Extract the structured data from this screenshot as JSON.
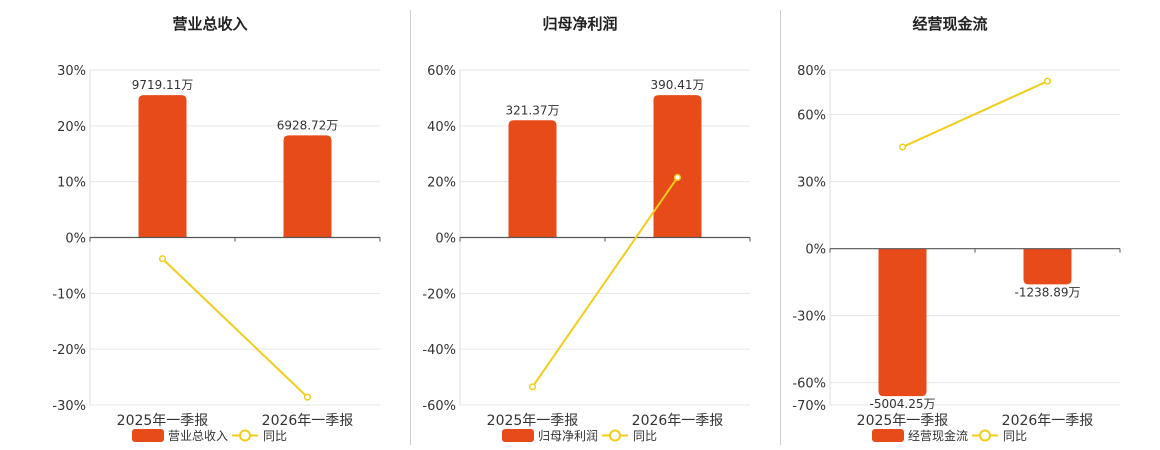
{
  "colors": {
    "bar": "#e84b1a",
    "line": "#f2cd1a",
    "axis": "#555555",
    "grid": "#e6e6e6",
    "text": "#333333"
  },
  "chart_data": [
    {
      "type": "bar",
      "title": "营业总收入",
      "categories": [
        "2025年一季报",
        "2026年一季报"
      ],
      "series": [
        {
          "name": "营业总收入",
          "type": "bar",
          "values": [
            25.5,
            18.3
          ],
          "labels": [
            "9719.11万",
            "6928.72万"
          ]
        },
        {
          "name": "同比",
          "type": "line",
          "values": [
            -3.8,
            -28.6
          ]
        }
      ],
      "yticks": [
        "30%",
        "20%",
        "10%",
        "0%",
        "-10%",
        "-20%",
        "-30%"
      ],
      "ylim": [
        -30,
        30
      ],
      "grid": true,
      "legend": "bottom"
    },
    {
      "type": "bar",
      "title": "归母净利润",
      "categories": [
        "2025年一季报",
        "2026年一季报"
      ],
      "series": [
        {
          "name": "归母净利润",
          "type": "bar",
          "values": [
            42,
            51
          ],
          "labels": [
            "321.37万",
            "390.41万"
          ]
        },
        {
          "name": "同比",
          "type": "line",
          "values": [
            -53.5,
            21.5
          ]
        }
      ],
      "yticks": [
        "60%",
        "40%",
        "20%",
        "0%",
        "-20%",
        "-40%",
        "-60%"
      ],
      "ylim": [
        -60,
        60
      ],
      "grid": true,
      "legend": "bottom"
    },
    {
      "type": "bar",
      "title": "经营现金流",
      "categories": [
        "2025年一季报",
        "2026年一季报"
      ],
      "series": [
        {
          "name": "经营现金流",
          "type": "bar",
          "values": [
            -66,
            -16
          ],
          "labels": [
            "-5004.25万",
            "-1238.89万"
          ]
        },
        {
          "name": "同比",
          "type": "line",
          "values": [
            45.5,
            75
          ]
        }
      ],
      "yticks": [
        "80%",
        "60%",
        "30%",
        "0%",
        "-30%",
        "-60%",
        "-70%"
      ],
      "ytick_values": [
        80,
        60,
        30,
        0,
        -30,
        -60,
        -70
      ],
      "ylim": [
        -70,
        80
      ],
      "grid": true,
      "legend": "bottom"
    }
  ]
}
